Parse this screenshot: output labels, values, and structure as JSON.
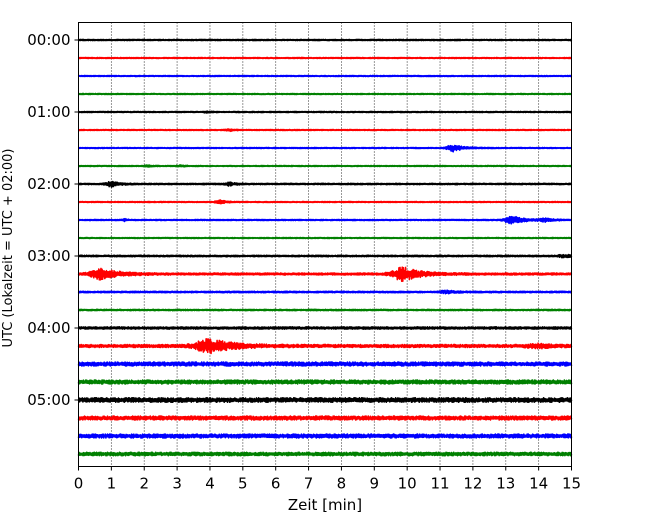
{
  "chart_data": {
    "type": "line",
    "title": "",
    "xlabel": "Zeit  [min]",
    "ylabel": "UTC (Lokalzeit = UTC + 02:00)",
    "xlim": [
      0,
      15
    ],
    "x_ticks": [
      "0",
      "1",
      "2",
      "3",
      "4",
      "5",
      "6",
      "7",
      "8",
      "9",
      "10",
      "11",
      "12",
      "13",
      "14",
      "15"
    ],
    "y_tick_labels": [
      "00:00",
      "01:00",
      "02:00",
      "03:00",
      "04:00",
      "05:00"
    ],
    "grid": "vertical dotted at each minute",
    "trace_interval_min": 15,
    "colors": {
      "black": "#000000",
      "red": "#ff0000",
      "blue": "#0000ff",
      "green": "#008000"
    },
    "traces": [
      {
        "time": "00:00",
        "color": "#000000",
        "base": 1.2,
        "events": []
      },
      {
        "time": "00:15",
        "color": "#ff0000",
        "base": 1.0,
        "events": []
      },
      {
        "time": "00:30",
        "color": "#0000ff",
        "base": 1.0,
        "events": []
      },
      {
        "time": "00:45",
        "color": "#008000",
        "base": 1.0,
        "events": []
      },
      {
        "time": "01:00",
        "color": "#000000",
        "base": 1.1,
        "events": [
          {
            "t": 3.9,
            "amp": 1.5,
            "w": 0.12
          }
        ]
      },
      {
        "time": "01:15",
        "color": "#ff0000",
        "base": 1.0,
        "events": [
          {
            "t": 4.6,
            "amp": 2.0,
            "w": 0.15
          }
        ]
      },
      {
        "time": "01:30",
        "color": "#0000ff",
        "base": 1.0,
        "events": [
          {
            "t": 11.4,
            "amp": 7.0,
            "w": 0.3
          }
        ]
      },
      {
        "time": "01:45",
        "color": "#008000",
        "base": 1.0,
        "events": [
          {
            "t": 2.1,
            "amp": 1.5,
            "w": 0.15
          },
          {
            "t": 3.1,
            "amp": 1.5,
            "w": 0.15
          }
        ]
      },
      {
        "time": "02:00",
        "color": "#000000",
        "base": 1.3,
        "events": [
          {
            "t": 1.0,
            "amp": 5.0,
            "w": 0.25
          },
          {
            "t": 4.6,
            "amp": 3.0,
            "w": 0.2
          }
        ]
      },
      {
        "time": "02:15",
        "color": "#ff0000",
        "base": 1.0,
        "events": [
          {
            "t": 4.3,
            "amp": 3.5,
            "w": 0.2
          }
        ]
      },
      {
        "time": "02:30",
        "color": "#0000ff",
        "base": 1.1,
        "events": [
          {
            "t": 13.2,
            "amp": 8.0,
            "w": 0.35
          },
          {
            "t": 14.2,
            "amp": 3.0,
            "w": 0.3
          },
          {
            "t": 1.4,
            "amp": 2.0,
            "w": 0.1
          }
        ]
      },
      {
        "time": "02:45",
        "color": "#008000",
        "base": 1.0,
        "events": []
      },
      {
        "time": "03:00",
        "color": "#000000",
        "base": 1.5,
        "events": [
          {
            "t": 14.8,
            "amp": 2.5,
            "w": 0.3
          }
        ]
      },
      {
        "time": "03:15",
        "color": "#ff0000",
        "base": 2.0,
        "events": [
          {
            "t": 0.7,
            "amp": 10.0,
            "w": 0.55
          },
          {
            "t": 9.9,
            "amp": 13.0,
            "w": 0.55
          }
        ]
      },
      {
        "time": "03:30",
        "color": "#0000ff",
        "base": 1.5,
        "events": [
          {
            "t": 11.2,
            "amp": 2.5,
            "w": 0.3
          }
        ]
      },
      {
        "time": "03:45",
        "color": "#008000",
        "base": 1.3,
        "events": []
      },
      {
        "time": "04:00",
        "color": "#000000",
        "base": 2.3,
        "events": []
      },
      {
        "time": "04:15",
        "color": "#ff0000",
        "base": 3.0,
        "events": [
          {
            "t": 4.0,
            "amp": 13.0,
            "w": 0.7
          },
          {
            "t": 14.0,
            "amp": 3.0,
            "w": 0.5
          }
        ]
      },
      {
        "time": "04:30",
        "color": "#0000ff",
        "base": 4.0,
        "events": []
      },
      {
        "time": "04:45",
        "color": "#008000",
        "base": 4.0,
        "events": []
      },
      {
        "time": "05:00",
        "color": "#000000",
        "base": 4.5,
        "events": []
      },
      {
        "time": "05:15",
        "color": "#ff0000",
        "base": 4.0,
        "events": []
      },
      {
        "time": "05:30",
        "color": "#0000ff",
        "base": 4.0,
        "events": []
      },
      {
        "time": "05:45",
        "color": "#008000",
        "base": 3.5,
        "events": []
      }
    ]
  }
}
